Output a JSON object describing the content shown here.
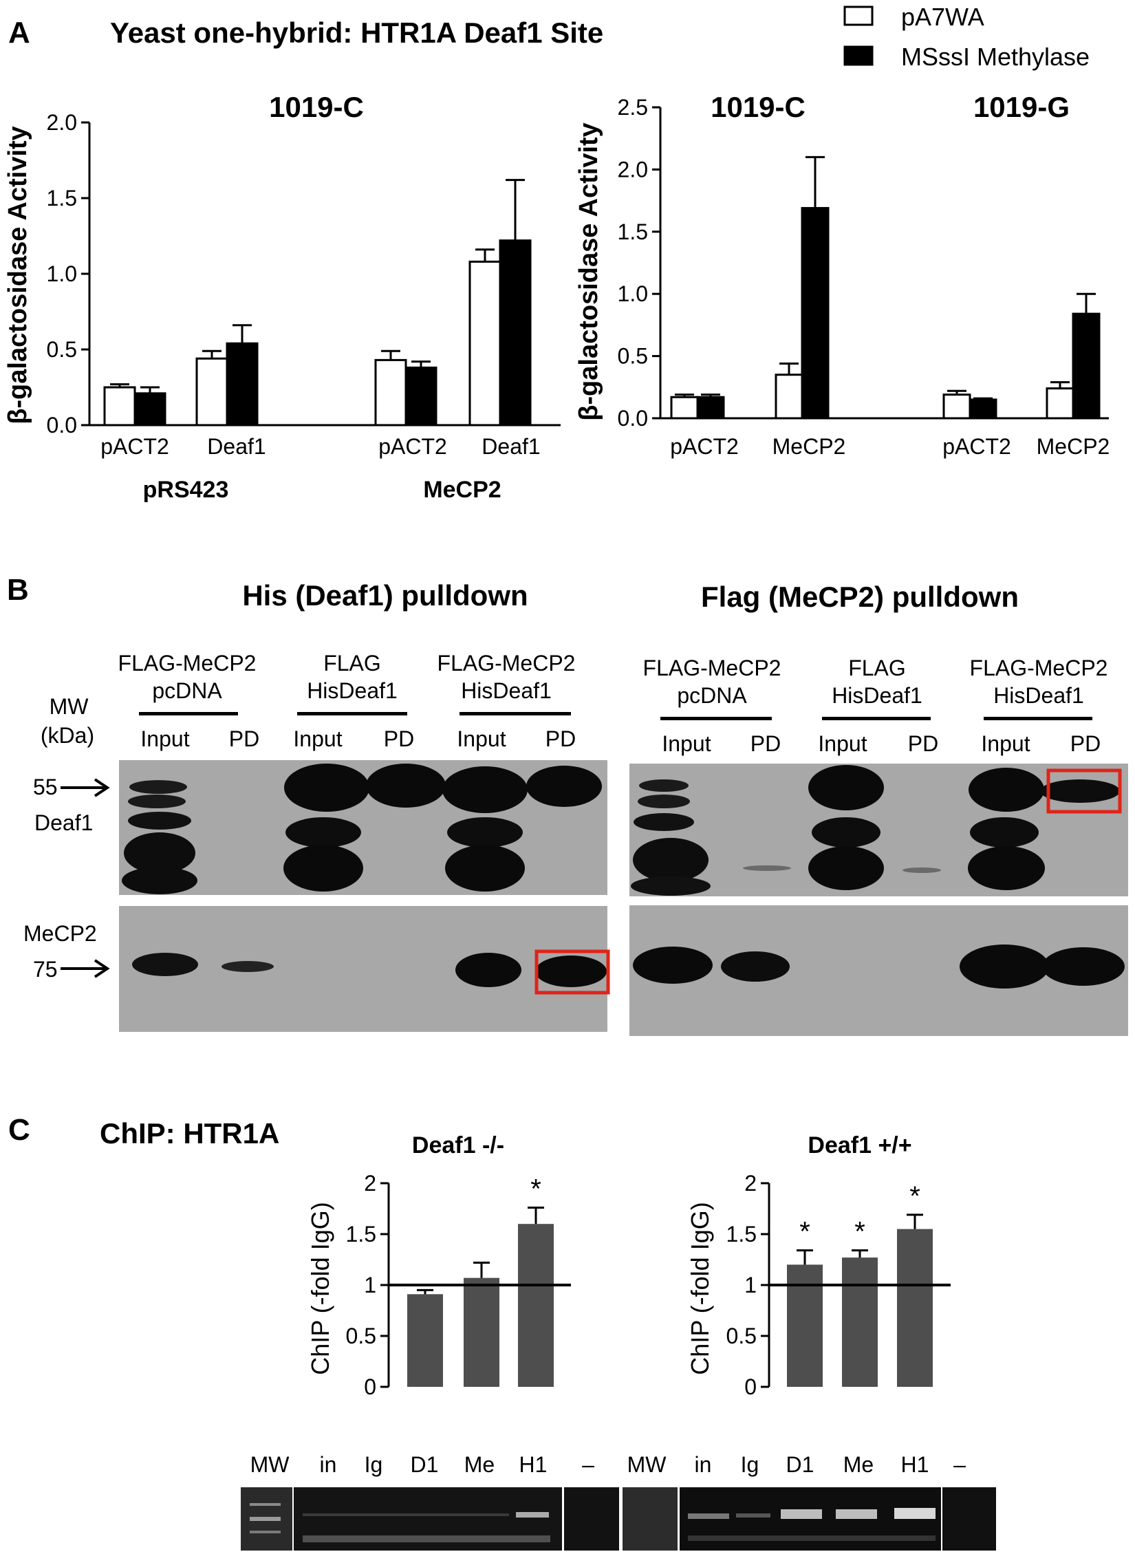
{
  "panel_a": {
    "letter": "A",
    "title": "Yeast one-hybrid: HTR1A Deaf1 Site"
  },
  "legend": {
    "items": [
      {
        "label": "pA7WA",
        "color": "#ffffff"
      },
      {
        "label": "MSssI Methylase",
        "color": "#000000"
      }
    ]
  },
  "panel_b": {
    "letter": "B",
    "left_title": "His (Deaf1) pulldown",
    "right_title": "Flag (MeCP2) pulldown",
    "mw_label": "MW",
    "kda_label": "(kDa)",
    "marker_55": "55",
    "marker_75": "75",
    "deaf1_label": "Deaf1",
    "mecp2_label": "MeCP2",
    "groups": [
      {
        "line1": "FLAG-MeCP2",
        "line2": "pcDNA"
      },
      {
        "line1": "FLAG",
        "line2": "HisDeaf1"
      },
      {
        "line1": "FLAG-MeCP2",
        "line2": "HisDeaf1"
      }
    ],
    "input_label": "Input",
    "pd_label": "PD"
  },
  "panel_c": {
    "letter": "C",
    "title": "ChIP: HTR1A",
    "gel_lanes_left": [
      "MW",
      "in",
      "Ig",
      "D1",
      "Me",
      "H1",
      "–"
    ],
    "gel_lanes_right": [
      "MW",
      "in",
      "Ig",
      "D1",
      "Me",
      "H1",
      "–"
    ]
  },
  "chart_data": [
    {
      "type": "bar",
      "title": "1019-C",
      "ylabel": "β-galactosidase Activity",
      "ylim": [
        0,
        2.0
      ],
      "yticks": [
        "0.0",
        "0.5",
        "1.0",
        "1.5",
        "2.0"
      ],
      "categories": [
        "pACT2",
        "Deaf1",
        "pACT2",
        "Deaf1"
      ],
      "groups": [
        "pRS423",
        "MeCP2"
      ],
      "series": [
        {
          "name": "pA7WA",
          "values": [
            0.25,
            0.44,
            0.43,
            1.08
          ],
          "errors": [
            0.02,
            0.05,
            0.06,
            0.08
          ]
        },
        {
          "name": "MSssI Methylase",
          "values": [
            0.21,
            0.54,
            0.38,
            1.22
          ],
          "errors": [
            0.04,
            0.12,
            0.04,
            0.4
          ]
        }
      ]
    },
    {
      "type": "bar",
      "ylabel": "β-galactosidase Activity",
      "ylim": [
        0,
        2.5
      ],
      "yticks": [
        "0.0",
        "0.5",
        "1.0",
        "1.5",
        "2.0",
        "2.5"
      ],
      "categories": [
        "pACT2",
        "MeCP2",
        "pACT2",
        "MeCP2"
      ],
      "groups": [
        "1019-C",
        "1019-G"
      ],
      "series": [
        {
          "name": "pA7WA",
          "values": [
            0.17,
            0.35,
            0.19,
            0.24
          ],
          "errors": [
            0.02,
            0.09,
            0.03,
            0.05
          ]
        },
        {
          "name": "MSssI Methylase",
          "values": [
            0.17,
            1.69,
            0.15,
            0.84
          ],
          "errors": [
            0.02,
            0.41,
            0.01,
            0.16
          ]
        }
      ]
    },
    {
      "type": "bar",
      "title": "Deaf1 -/-",
      "ylabel": "ChIP (-fold IgG)",
      "ylim": [
        0,
        2
      ],
      "yticks": [
        "0",
        "0.5",
        "1",
        "1.5",
        "2"
      ],
      "categories": [
        "D1",
        "Me",
        "H1"
      ],
      "values": [
        0.91,
        1.07,
        1.6
      ],
      "errors": [
        0.04,
        0.15,
        0.16
      ],
      "significance": [
        "",
        "",
        "*"
      ],
      "reference_line": 1
    },
    {
      "type": "bar",
      "title": "Deaf1 +/+",
      "ylabel": "ChIP (-fold IgG)",
      "ylim": [
        0,
        2
      ],
      "yticks": [
        "0",
        "0.5",
        "1",
        "1.5",
        "2"
      ],
      "categories": [
        "D1",
        "Me",
        "H1"
      ],
      "values": [
        1.2,
        1.27,
        1.55
      ],
      "errors": [
        0.14,
        0.07,
        0.14
      ],
      "significance": [
        "*",
        "*",
        "*"
      ],
      "reference_line": 1
    }
  ]
}
